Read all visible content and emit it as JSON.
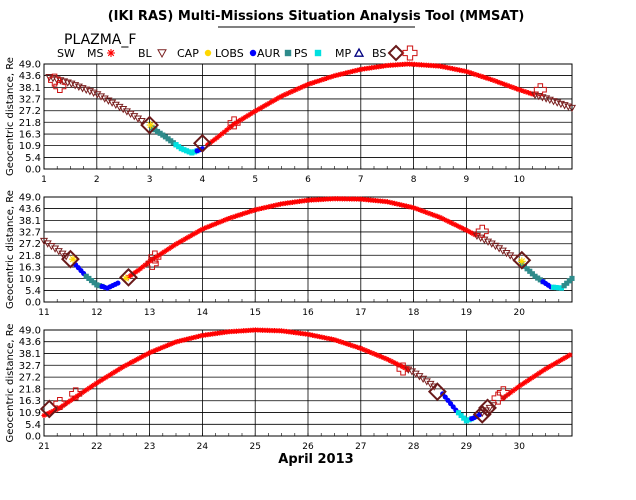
{
  "header": {
    "title": "(IKI RAS) Multi-Missions Situation Analysis Tool (MMSAT)",
    "subtitle": "PLAZMA_F"
  },
  "legend": [
    {
      "label": "SW",
      "symbol": "",
      "color": "#000000"
    },
    {
      "label": "MS",
      "symbol": "star",
      "color": "#ff0000"
    },
    {
      "label": "BL",
      "symbol": "tri-down",
      "color": "#7a2020"
    },
    {
      "label": "CAP",
      "symbol": "circle",
      "color": "#ffd700"
    },
    {
      "label": "LOBS",
      "symbol": "circle",
      "color": "#0000ff"
    },
    {
      "label": "AUR",
      "symbol": "square",
      "color": "#2e8b8b"
    },
    {
      "label": "PS",
      "symbol": "square",
      "color": "#00e0e0"
    },
    {
      "label": "MP",
      "symbol": "tri-up",
      "color": "#000080"
    },
    {
      "label": "BS",
      "symbol": "diamond",
      "color": "#6a1a1a"
    },
    {
      "label": "",
      "symbol": "cross",
      "color": "#cc1010"
    }
  ],
  "chart_data": {
    "type": "scatter",
    "xlabel": "April 2013",
    "ylabel": "Geocentric distance, Re",
    "y_ticks": [
      "0.0",
      "5.4",
      "10.9",
      "16.3",
      "21.8",
      "27.2",
      "32.7",
      "38.1",
      "43.6",
      "49.0"
    ],
    "ylim": [
      0,
      49
    ],
    "grid": true,
    "colors": {
      "MS": "#ff0000",
      "BL": "#7a2020",
      "CAP": "#ffd700",
      "LOBS": "#0000ff",
      "AUR": "#2e8b8b",
      "PS": "#00e0e0",
      "MP": "#000080",
      "BS": "#6a1a1a",
      "SW": "#cc1010"
    },
    "panels": [
      {
        "xlim": [
          1,
          11
        ],
        "x_ticks": [
          1,
          2,
          3,
          4,
          5,
          6,
          7,
          8,
          9,
          10
        ],
        "orbit": [
          [
            1.0,
            43.6
          ],
          [
            1.5,
            40.0
          ],
          [
            2.0,
            35.0
          ],
          [
            2.5,
            28.0
          ],
          [
            3.0,
            20.0
          ],
          [
            3.3,
            15.0
          ],
          [
            3.6,
            9.5
          ],
          [
            3.8,
            7.5
          ],
          [
            4.0,
            9.5
          ],
          [
            4.3,
            15.0
          ],
          [
            4.6,
            21.0
          ],
          [
            5.0,
            27.0
          ],
          [
            5.5,
            34.0
          ],
          [
            6.0,
            39.5
          ],
          [
            6.5,
            43.5
          ],
          [
            7.0,
            46.5
          ],
          [
            7.5,
            48.3
          ],
          [
            7.9,
            49.0
          ],
          [
            8.5,
            48.0
          ],
          [
            9.0,
            45.5
          ],
          [
            9.5,
            41.5
          ],
          [
            10.0,
            37.0
          ],
          [
            10.5,
            33.0
          ],
          [
            11.0,
            28.5
          ]
        ],
        "segments": [
          {
            "region": "BL",
            "x": [
              1.1,
              2.9
            ]
          },
          {
            "region": "MS",
            "x": [
              4.1,
              10.3
            ]
          },
          {
            "region": "BL",
            "x": [
              10.3,
              11.0
            ]
          },
          {
            "region": "AUR",
            "x": [
              3.05,
              3.5
            ]
          },
          {
            "region": "PS",
            "x": [
              3.5,
              3.9
            ]
          },
          {
            "region": "LOBS",
            "x": [
              3.9,
              4.0
            ]
          }
        ],
        "bow_shock": [
          [
            3.0,
            20.5
          ],
          [
            4.0,
            12.0
          ]
        ],
        "solar_wind": [
          [
            1.2,
            41.5
          ],
          [
            1.3,
            38.5
          ],
          [
            4.6,
            21.5
          ],
          [
            10.4,
            37.0
          ]
        ],
        "cap": [
          [
            3.02,
            20.5
          ]
        ]
      },
      {
        "xlim": [
          11,
          21
        ],
        "x_ticks": [
          11,
          12,
          13,
          14,
          15,
          16,
          17,
          18,
          19,
          20
        ],
        "orbit": [
          [
            11.0,
            28.5
          ],
          [
            11.5,
            20.0
          ],
          [
            11.8,
            12.0
          ],
          [
            12.0,
            8.0
          ],
          [
            12.2,
            6.5
          ],
          [
            12.5,
            10.0
          ],
          [
            12.8,
            15.0
          ],
          [
            13.0,
            19.0
          ],
          [
            13.5,
            27.0
          ],
          [
            14.0,
            34.0
          ],
          [
            14.5,
            39.0
          ],
          [
            15.0,
            43.0
          ],
          [
            15.5,
            45.8
          ],
          [
            16.0,
            47.5
          ],
          [
            16.5,
            48.2
          ],
          [
            17.0,
            48.0
          ],
          [
            17.5,
            46.8
          ],
          [
            18.0,
            44.0
          ],
          [
            18.5,
            39.5
          ],
          [
            19.0,
            33.5
          ],
          [
            19.5,
            27.0
          ],
          [
            20.0,
            19.0
          ],
          [
            20.3,
            12.0
          ],
          [
            20.6,
            7.0
          ],
          [
            20.8,
            6.5
          ],
          [
            21.0,
            11.0
          ]
        ],
        "segments": [
          {
            "region": "BL",
            "x": [
              11.0,
              11.45
            ]
          },
          {
            "region": "LOBS",
            "x": [
              11.6,
              11.8
            ]
          },
          {
            "region": "AUR",
            "x": [
              11.8,
              12.1
            ]
          },
          {
            "region": "LOBS",
            "x": [
              12.1,
              12.4
            ]
          },
          {
            "region": "MS",
            "x": [
              12.6,
              19.2
            ]
          },
          {
            "region": "BL",
            "x": [
              19.2,
              19.95
            ]
          },
          {
            "region": "AUR",
            "x": [
              20.05,
              20.45
            ]
          },
          {
            "region": "LOBS",
            "x": [
              20.45,
              20.65
            ]
          },
          {
            "region": "PS",
            "x": [
              20.65,
              20.85
            ]
          },
          {
            "region": "AUR",
            "x": [
              20.85,
              21.0
            ]
          }
        ],
        "bow_shock": [
          [
            11.5,
            20.0
          ],
          [
            12.6,
            11.5
          ],
          [
            20.05,
            19.5
          ]
        ],
        "solar_wind": [
          [
            13.05,
            18.0
          ],
          [
            13.1,
            21.0
          ],
          [
            19.3,
            33.0
          ]
        ],
        "cap": [
          [
            11.55,
            20.0
          ],
          [
            12.55,
            11.0
          ],
          [
            20.05,
            19.0
          ]
        ]
      },
      {
        "xlim": [
          21,
          31
        ],
        "x_ticks": [
          21,
          22,
          23,
          24,
          25,
          26,
          27,
          28,
          29,
          30
        ],
        "orbit": [
          [
            21.0,
            9.5
          ],
          [
            21.3,
            13.0
          ],
          [
            21.6,
            18.0
          ],
          [
            22.0,
            24.5
          ],
          [
            22.5,
            32.0
          ],
          [
            23.0,
            38.5
          ],
          [
            23.5,
            43.5
          ],
          [
            24.0,
            46.5
          ],
          [
            24.5,
            48.2
          ],
          [
            25.0,
            49.0
          ],
          [
            25.5,
            48.6
          ],
          [
            26.0,
            47.0
          ],
          [
            26.5,
            44.5
          ],
          [
            27.0,
            40.5
          ],
          [
            27.5,
            35.5
          ],
          [
            28.0,
            29.5
          ],
          [
            28.5,
            21.0
          ],
          [
            28.8,
            12.0
          ],
          [
            29.0,
            7.0
          ],
          [
            29.2,
            9.0
          ],
          [
            29.5,
            14.0
          ],
          [
            30.0,
            23.0
          ],
          [
            30.5,
            31.0
          ],
          [
            31.0,
            38.0
          ]
        ],
        "segments": [
          {
            "region": "MS",
            "x": [
              21.0,
              27.9
            ]
          },
          {
            "region": "BL",
            "x": [
              27.9,
              28.45
            ]
          },
          {
            "region": "LOBS",
            "x": [
              28.55,
              28.85
            ]
          },
          {
            "region": "PS",
            "x": [
              28.85,
              29.1
            ]
          },
          {
            "region": "LOBS",
            "x": [
              29.1,
              29.25
            ]
          },
          {
            "region": "BL",
            "x": [
              29.3,
              29.55
            ]
          },
          {
            "region": "MS",
            "x": [
              29.7,
              31.0
            ]
          }
        ],
        "bow_shock": [
          [
            21.1,
            12.5
          ],
          [
            28.45,
            20.5
          ],
          [
            29.3,
            10.0
          ],
          [
            29.4,
            13.0
          ]
        ],
        "solar_wind": [
          [
            21.3,
            15.0
          ],
          [
            21.6,
            19.5
          ],
          [
            27.8,
            31.0
          ],
          [
            29.6,
            17.5
          ],
          [
            29.7,
            20.0
          ]
        ],
        "cap": []
      }
    ]
  }
}
